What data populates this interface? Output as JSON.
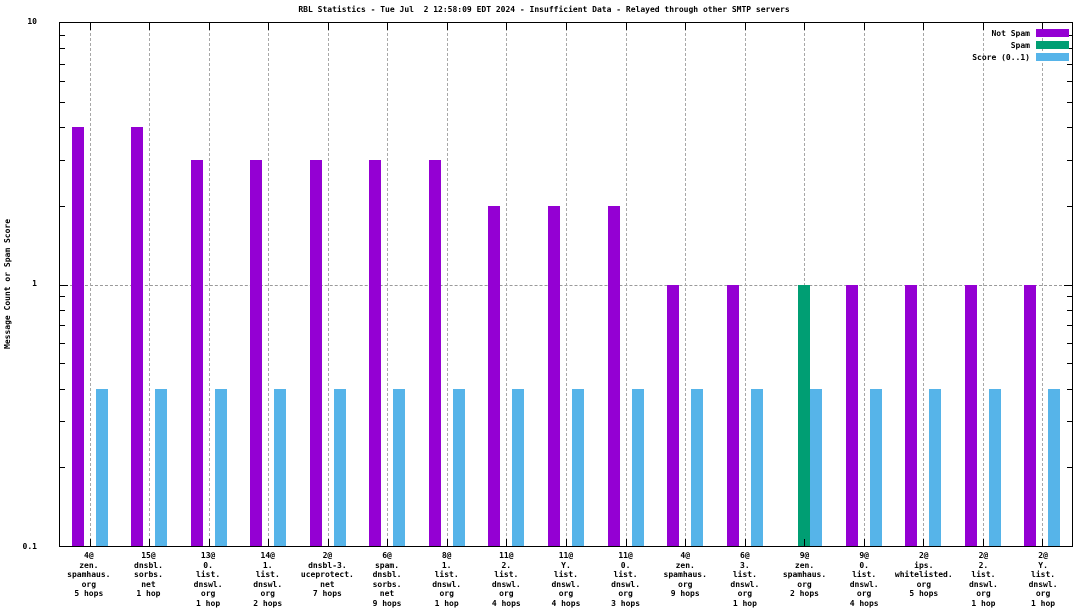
{
  "title": "RBL Statistics - Tue Jul  2 12:58:09 EDT 2024 - Insufficient Data - Relayed through other SMTP servers",
  "y_axis": {
    "label": "Message Count or Spam Score",
    "tick_labels": [
      "10",
      "1",
      "0.1"
    ],
    "scale": "log",
    "min": 0.1,
    "max": 10
  },
  "legend": {
    "position": "top-right",
    "items": [
      {
        "label": "Not Spam",
        "color": "#9400D3"
      },
      {
        "label": "Spam",
        "color": "#009E73"
      },
      {
        "label": "Score (0..1)",
        "color": "#56B4E9"
      }
    ]
  },
  "colors": {
    "not_spam": "#9400D3",
    "spam": "#009E73",
    "score": "#56B4E9",
    "grid": "#9a9a9a",
    "axis": "#000000",
    "background": "#ffffff"
  },
  "chart_data": {
    "type": "bar",
    "title": "RBL Statistics - Tue Jul  2 12:58:09 EDT 2024 - Insufficient Data - Relayed through other SMTP servers",
    "xlabel": "",
    "ylabel": "Message Count or Spam Score",
    "yscale": "log",
    "ylim": [
      0.1,
      10
    ],
    "grid": "vertical dashed gridline per category; horizontal dashed gridline at y=1",
    "legend_position": "top-right",
    "categories": [
      [
        "4@",
        "zen.",
        "spamhaus.",
        "org",
        "5 hops"
      ],
      [
        "15@",
        "dnsbl.",
        "sorbs.",
        "net",
        "1 hop"
      ],
      [
        "13@",
        "0.",
        "list.",
        "dnswl.",
        "org",
        "1 hop"
      ],
      [
        "14@",
        "1.",
        "list.",
        "dnswl.",
        "org",
        "2 hops"
      ],
      [
        "2@",
        "dnsbl-3.",
        "uceprotect.",
        "net",
        "7 hops"
      ],
      [
        "6@",
        "spam.",
        "dnsbl.",
        "sorbs.",
        "net",
        "9 hops"
      ],
      [
        "8@",
        "1.",
        "list.",
        "dnswl.",
        "org",
        "1 hop"
      ],
      [
        "11@",
        "2.",
        "list.",
        "dnswl.",
        "org",
        "4 hops"
      ],
      [
        "11@",
        "Y.",
        "list.",
        "dnswl.",
        "org",
        "4 hops"
      ],
      [
        "11@",
        "0.",
        "list.",
        "dnswl.",
        "org",
        "3 hops"
      ],
      [
        "4@",
        "zen.",
        "spamhaus.",
        "org",
        "9 hops"
      ],
      [
        "6@",
        "3.",
        "list.",
        "dnswl.",
        "org",
        "1 hop"
      ],
      [
        "9@",
        "zen.",
        "spamhaus.",
        "org",
        "2 hops"
      ],
      [
        "9@",
        "0.",
        "list.",
        "dnswl.",
        "org",
        "4 hops"
      ],
      [
        "2@",
        "ips.",
        "whitelisted.",
        "org",
        "5 hops"
      ],
      [
        "2@",
        "2.",
        "list.",
        "dnswl.",
        "org",
        "1 hop"
      ],
      [
        "2@",
        "Y.",
        "list.",
        "dnswl.",
        "org",
        "1 hop"
      ]
    ],
    "series": [
      {
        "name": "Not Spam",
        "color": "#9400D3",
        "values": [
          4,
          4,
          3,
          3,
          3,
          3,
          3,
          2,
          2,
          2,
          1,
          1,
          0,
          1,
          1,
          1,
          1
        ]
      },
      {
        "name": "Spam",
        "color": "#009E73",
        "values": [
          0,
          0,
          0,
          0,
          0,
          0,
          0,
          0,
          0,
          0,
          0,
          0,
          1,
          0,
          0,
          0,
          0
        ]
      },
      {
        "name": "Score (0..1)",
        "color": "#56B4E9",
        "values": [
          0.4,
          0.4,
          0.4,
          0.4,
          0.4,
          0.4,
          0.4,
          0.4,
          0.4,
          0.4,
          0.4,
          0.4,
          0.4,
          0.4,
          0.4,
          0.4,
          0.4
        ]
      }
    ]
  }
}
